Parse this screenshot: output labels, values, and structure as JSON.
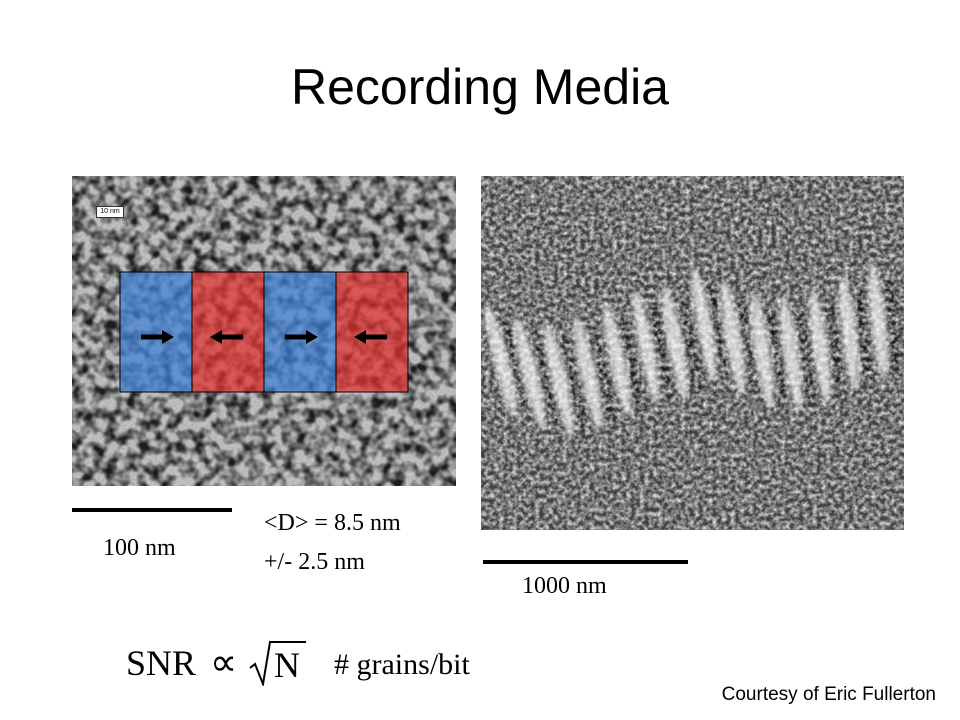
{
  "slide": {
    "title": "Recording Media"
  },
  "left_image": {
    "inset_scale": "10 nm",
    "scale_label": "100 nm",
    "bits": [
      {
        "color": "#3f7fd6",
        "arrow": "right"
      },
      {
        "color": "#e0302e",
        "arrow": "left"
      },
      {
        "color": "#3f7fd6",
        "arrow": "right"
      },
      {
        "color": "#e0302e",
        "arrow": "left"
      }
    ]
  },
  "grain_size": {
    "line1": "<D> = 8.5 nm",
    "line2": "+/- 2.5 nm"
  },
  "right_image": {
    "scale_label": "1000 nm"
  },
  "formula": {
    "lhs": "SNR",
    "relation": "∝",
    "rhs": "N",
    "note": "# grains/bit"
  },
  "credit": "Courtesy of Eric Fullerton"
}
